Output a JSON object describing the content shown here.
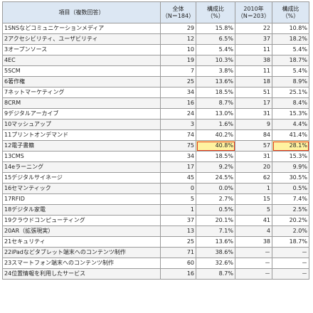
{
  "header": {
    "item": "項目（複数回答）",
    "total_2011": [
      "全体",
      "（N＝184）"
    ],
    "ratio_2011": [
      "構成比",
      "（%）"
    ],
    "total_2010": [
      "2010年",
      "（N＝203）"
    ],
    "ratio_2010": [
      "構成比",
      "（%）"
    ]
  },
  "rows": [
    {
      "label": "1SNSなどコミュニケーションメディア",
      "n1": "29",
      "p1": "15.8%",
      "n2": "22",
      "p2": "10.8%"
    },
    {
      "label": "2アクセシビリティ、ユーザビリティ",
      "n1": "12",
      "p1": "6.5%",
      "n2": "37",
      "p2": "18.2%"
    },
    {
      "label": "3オープンソース",
      "n1": "10",
      "p1": "5.4%",
      "n2": "11",
      "p2": "5.4%"
    },
    {
      "label": "4EC",
      "n1": "19",
      "p1": "10.3%",
      "n2": "38",
      "p2": "18.7%"
    },
    {
      "label": "5SCM",
      "n1": "7",
      "p1": "3.8%",
      "n2": "11",
      "p2": "5.4%"
    },
    {
      "label": "6著作権",
      "n1": "25",
      "p1": "13.6%",
      "n2": "18",
      "p2": "8.9%"
    },
    {
      "label": "7ネットマーケティング",
      "n1": "34",
      "p1": "18.5%",
      "n2": "51",
      "p2": "25.1%"
    },
    {
      "label": "8CRM",
      "n1": "16",
      "p1": "8.7%",
      "n2": "17",
      "p2": "8.4%"
    },
    {
      "label": "9デジタルアーカイブ",
      "n1": "24",
      "p1": "13.0%",
      "n2": "31",
      "p2": "15.3%"
    },
    {
      "label": "10マッシュアップ",
      "n1": "3",
      "p1": "1.6%",
      "n2": "9",
      "p2": "4.4%"
    },
    {
      "label": "11プリントオンデマンド",
      "n1": "74",
      "p1": "40.2%",
      "n2": "84",
      "p2": "41.4%"
    },
    {
      "label": "12電子書籍",
      "n1": "75",
      "p1": "40.8%",
      "n2": "57",
      "p2": "28.1%",
      "highlight": true
    },
    {
      "label": "13CMS",
      "n1": "34",
      "p1": "18.5%",
      "n2": "31",
      "p2": "15.3%"
    },
    {
      "label": "14eラーニング",
      "n1": "17",
      "p1": "9.2%",
      "n2": "20",
      "p2": "9.9%"
    },
    {
      "label": "15デジタルサイネージ",
      "n1": "45",
      "p1": "24.5%",
      "n2": "62",
      "p2": "30.5%"
    },
    {
      "label": "16セマンティック",
      "n1": "0",
      "p1": "0.0%",
      "n2": "1",
      "p2": "0.5%"
    },
    {
      "label": "17RFID",
      "n1": "5",
      "p1": "2.7%",
      "n2": "15",
      "p2": "7.4%"
    },
    {
      "label": "18デジタル家電",
      "n1": "1",
      "p1": "0.5%",
      "n2": "5",
      "p2": "2.5%"
    },
    {
      "label": "19クラウドコンピューティング",
      "n1": "37",
      "p1": "20.1%",
      "n2": "41",
      "p2": "20.2%"
    },
    {
      "label": "20AR（拡張現実）",
      "n1": "13",
      "p1": "7.1%",
      "n2": "4",
      "p2": "2.0%"
    },
    {
      "label": "21セキュリティ",
      "n1": "25",
      "p1": "13.6%",
      "n2": "38",
      "p2": "18.7%"
    },
    {
      "label": "22iPadなどタブレット端末へのコンテンツ制作",
      "n1": "71",
      "p1": "38.6%",
      "n2": "－",
      "p2": "－"
    },
    {
      "label": "23スマートフォン端末へのコンテンツ制作",
      "n1": "60",
      "p1": "32.6%",
      "n2": "－",
      "p2": "－"
    },
    {
      "label": "24位置情報を利用したサービス",
      "n1": "16",
      "p1": "8.7%",
      "n2": "－",
      "p2": "－"
    }
  ]
}
